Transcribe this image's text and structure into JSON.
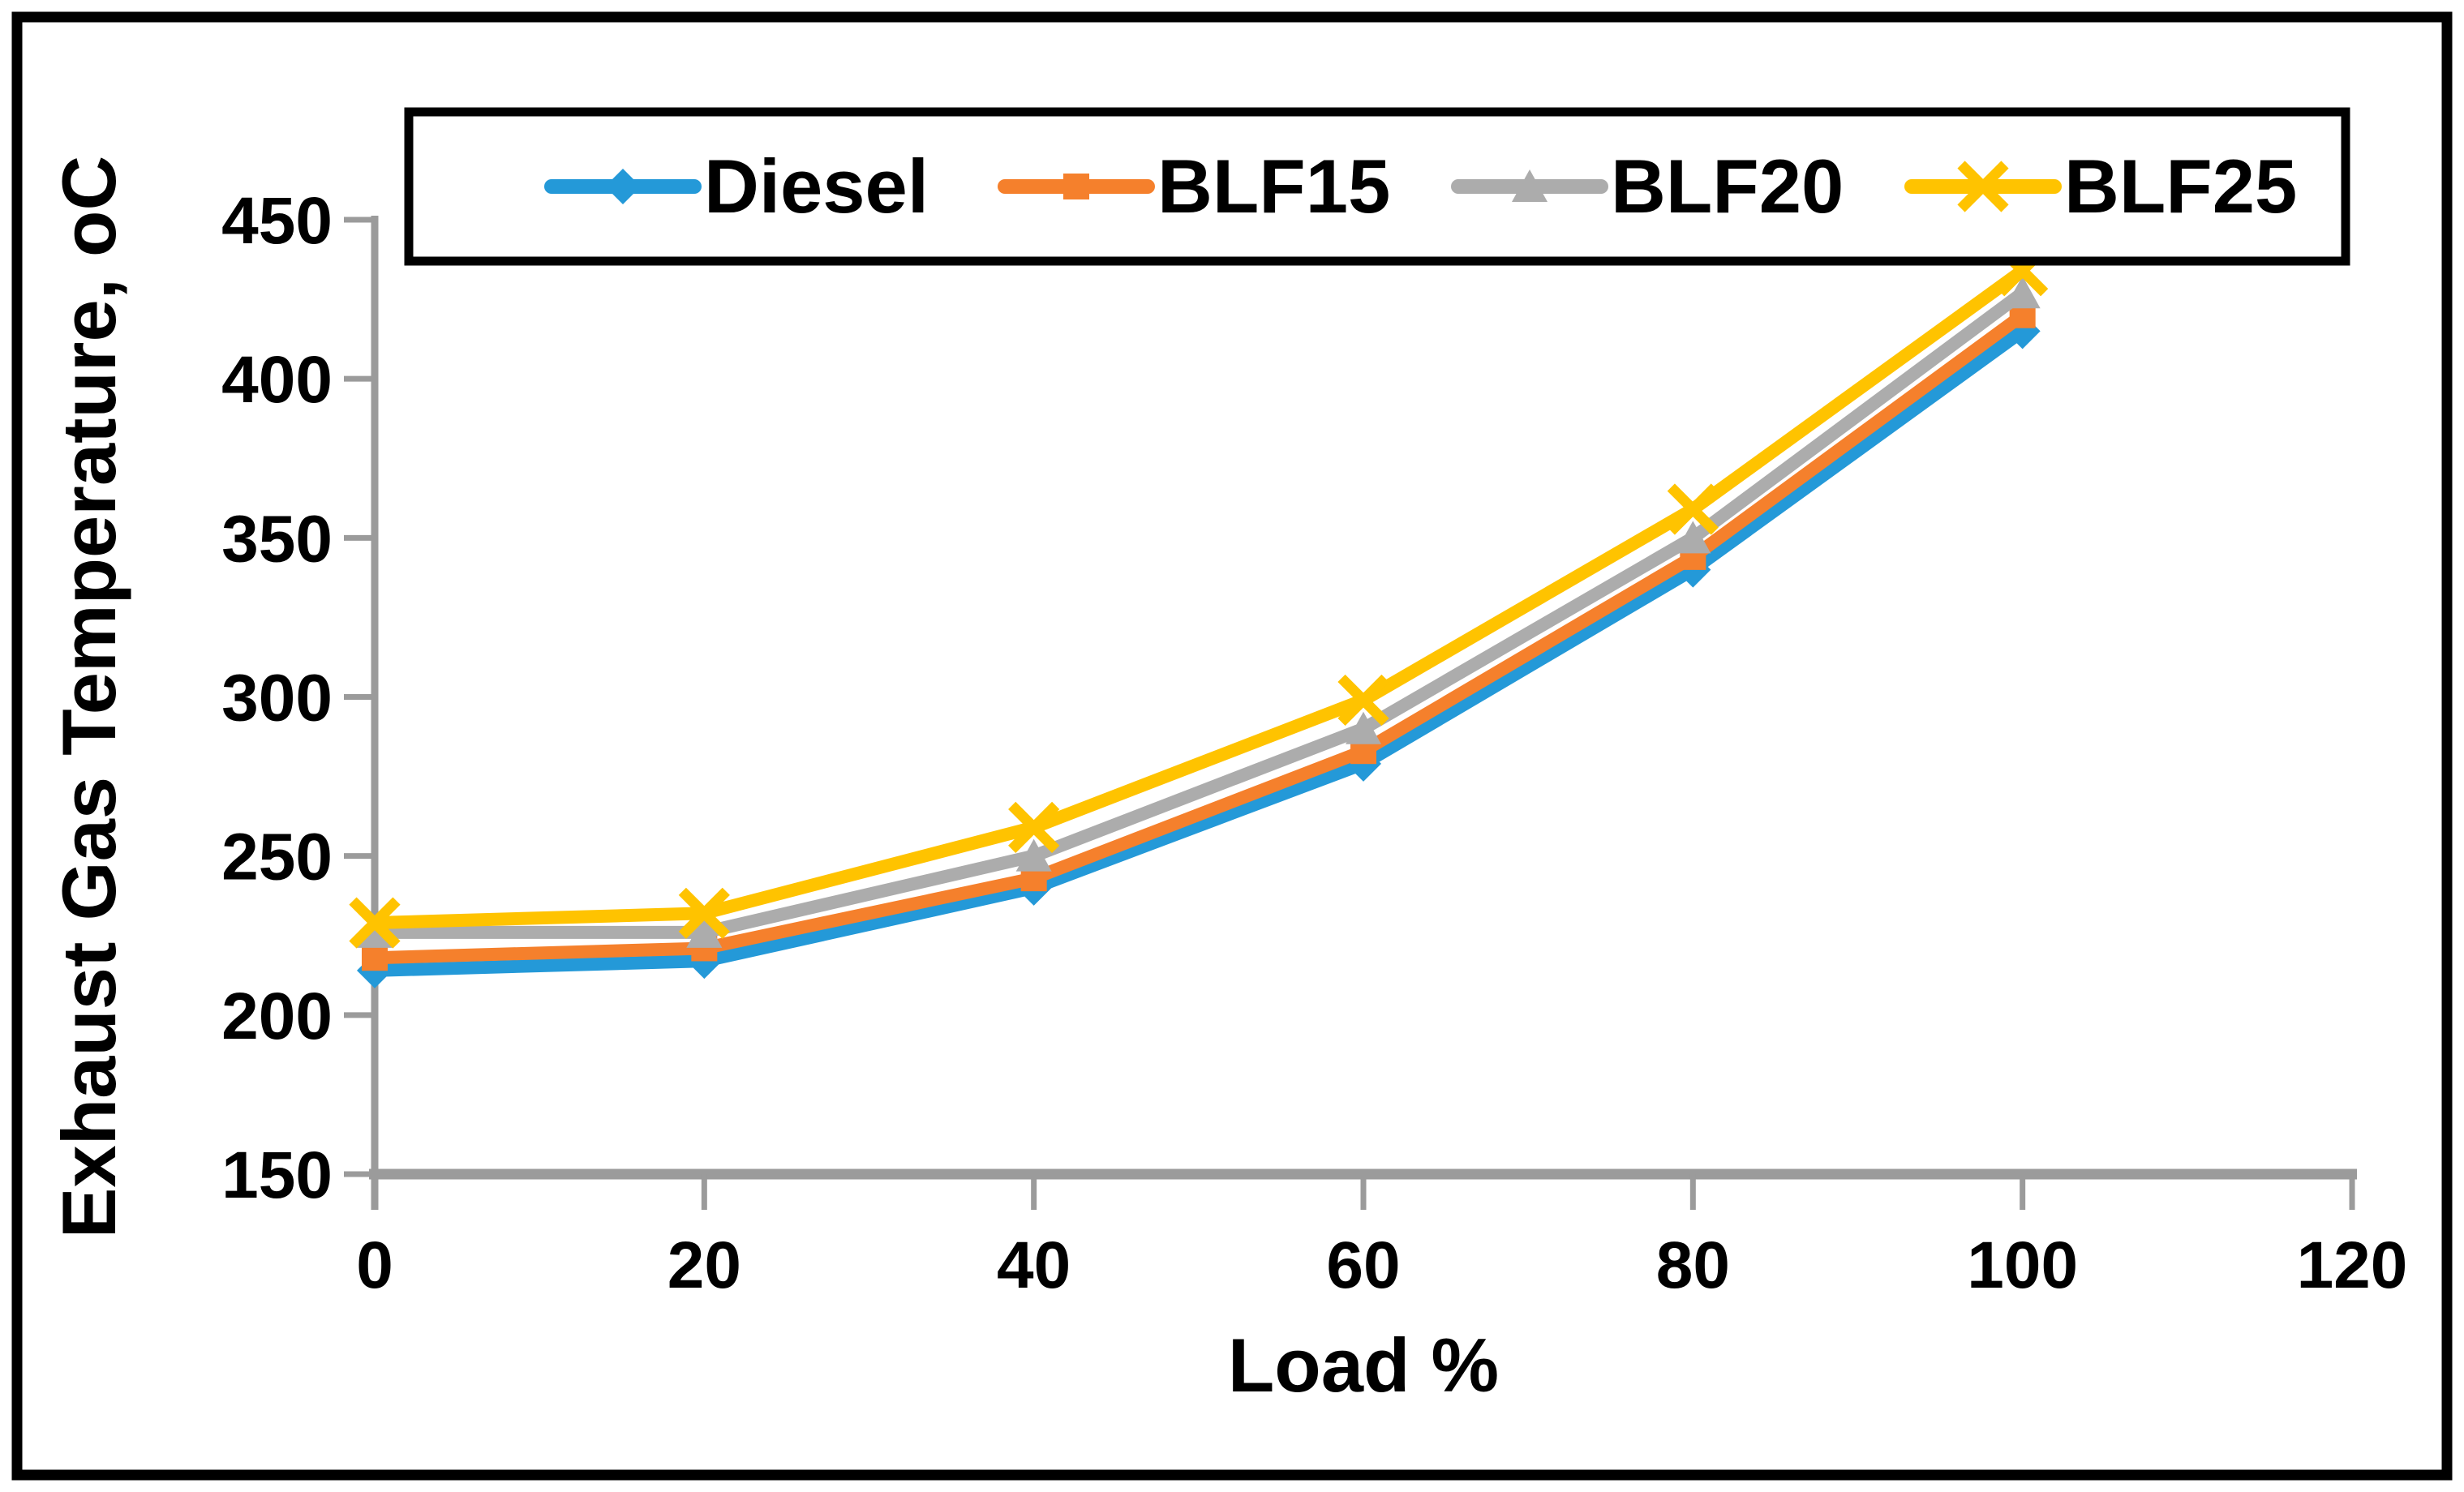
{
  "chart_data": {
    "type": "line",
    "title": "",
    "xlabel": "Load %",
    "ylabel": "Exhaust Gas Temperature, oC",
    "x": [
      0,
      20,
      40,
      60,
      80,
      100
    ],
    "series": [
      {
        "name": "Diesel",
        "marker": "diamond",
        "color": "#2499D8",
        "values": [
          214,
          217,
          240,
          279,
          340,
          415
        ]
      },
      {
        "name": "BLF15",
        "marker": "square",
        "color": "#F5802C",
        "values": [
          218,
          221,
          243,
          283,
          344,
          420
        ]
      },
      {
        "name": "BLF20",
        "marker": "triangle",
        "color": "#ACACAC",
        "values": [
          226,
          226,
          250,
          290,
          350,
          427
        ]
      },
      {
        "name": "BLF25",
        "marker": "x",
        "color": "#FFC300",
        "values": [
          229,
          232,
          259,
          299,
          359,
          434
        ]
      }
    ],
    "xlim": [
      0,
      120
    ],
    "ylim": [
      150,
      450
    ],
    "xticks": [
      0,
      20,
      40,
      60,
      80,
      100,
      120
    ],
    "yticks": [
      150,
      200,
      250,
      300,
      350,
      400,
      450
    ],
    "grid": false,
    "legend_position": "top"
  },
  "colors": {
    "background": "#FFFFFF",
    "frame_border": "#000000",
    "legend_border": "#000000",
    "axis_line": "#9B9B9B",
    "text": "#000000"
  }
}
